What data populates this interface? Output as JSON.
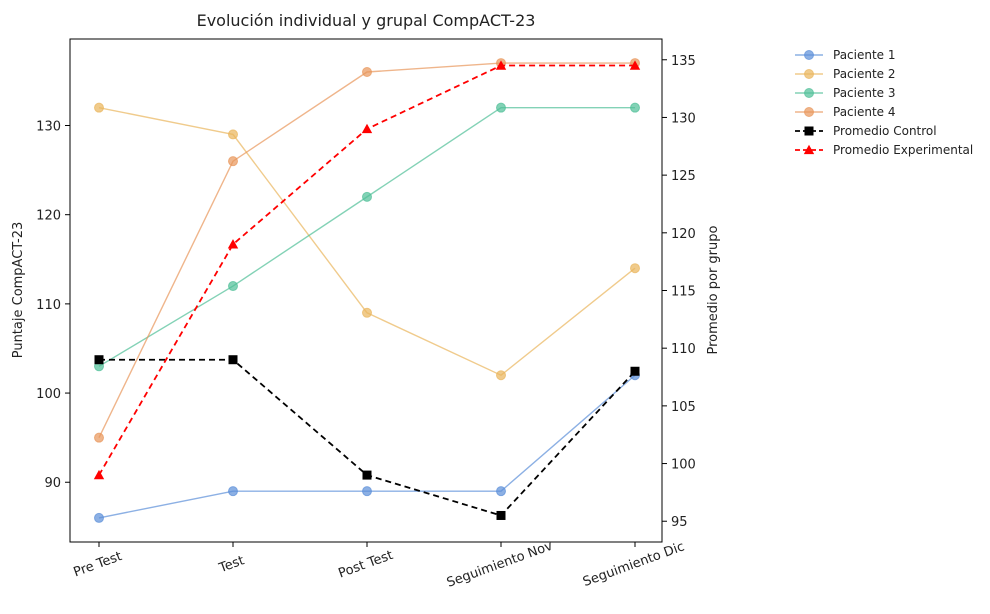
{
  "chart_data": {
    "type": "line",
    "title": "Evolución individual y grupal CompACT-23",
    "categories": [
      "Pre Test",
      "Test",
      "Post Test",
      "Seguimiento Nov",
      "Seguimiento Dic"
    ],
    "ylabel": "Puntaje CompACT-23",
    "ylabel_right": "Promedio por grupo",
    "ylim": [
      83.3,
      139.7
    ],
    "ylim_right": [
      93.2,
      136.8
    ],
    "yticks": [
      90,
      100,
      110,
      120,
      130
    ],
    "yticks_right": [
      95,
      100,
      105,
      110,
      115,
      120,
      125,
      130,
      135
    ],
    "grid": false,
    "legend_position": "outside-right",
    "series": [
      {
        "name": "Paciente 1",
        "axis": "left",
        "color": "#5b8fd9",
        "marker": "circle",
        "style": "solid",
        "values": [
          86,
          89,
          89,
          89,
          102
        ]
      },
      {
        "name": "Paciente 2",
        "axis": "left",
        "color": "#e9b55b",
        "marker": "circle",
        "style": "solid",
        "values": [
          132,
          129,
          109,
          102,
          114
        ]
      },
      {
        "name": "Paciente 3",
        "axis": "left",
        "color": "#4fbf97",
        "marker": "circle",
        "style": "solid",
        "values": [
          103,
          112,
          122,
          132,
          132
        ]
      },
      {
        "name": "Paciente 4",
        "axis": "left",
        "color": "#e8955a",
        "marker": "circle",
        "style": "solid",
        "values": [
          95,
          126,
          136,
          137,
          137
        ]
      },
      {
        "name": "Promedio Control",
        "axis": "right",
        "color": "#000000",
        "marker": "square",
        "style": "dashed",
        "values": [
          109,
          109,
          99,
          95.5,
          108
        ]
      },
      {
        "name": "Promedio Experimental",
        "axis": "right",
        "color": "#ff0000",
        "marker": "triangle",
        "style": "dashed",
        "values": [
          99,
          119,
          129,
          134.5,
          134.5
        ]
      }
    ]
  }
}
